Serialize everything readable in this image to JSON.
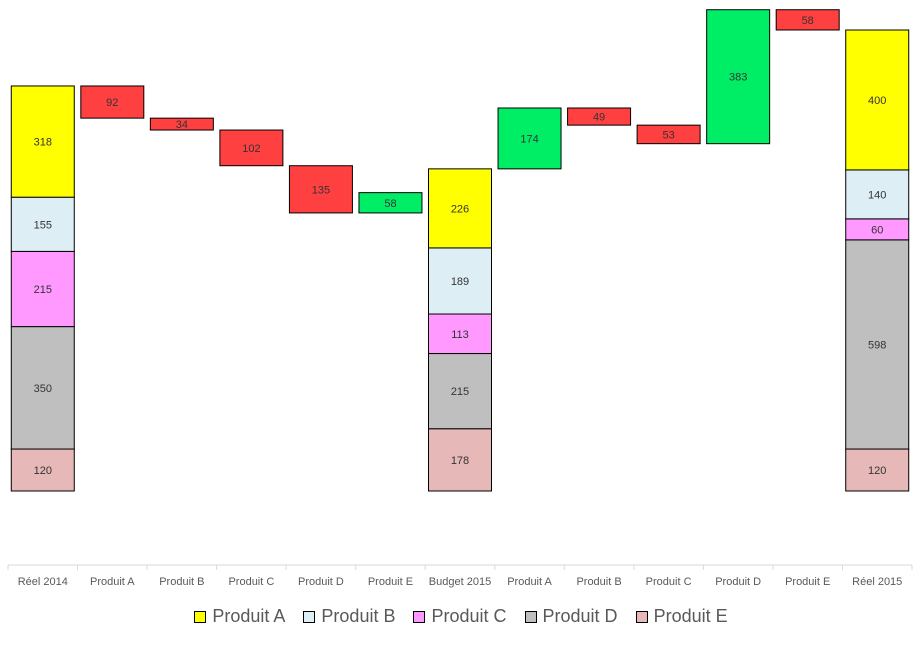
{
  "chart_data": {
    "type": "bar",
    "subtype": "stacked-waterfall",
    "title": "",
    "xlabel": "",
    "ylabel": "",
    "grid": false,
    "legend_position": "bottom",
    "categories": [
      "Réel 2014",
      "Produit A",
      "Produit B",
      "Produit C",
      "Produit D",
      "Produit E",
      "Budget 2015",
      "Produit A",
      "Produit B",
      "Produit C",
      "Produit D",
      "Produit E",
      "Réel 2015"
    ],
    "colors": {
      "produit_a": "#FFFF00",
      "produit_b": "#DDEEF5",
      "produit_c": "#FF99FF",
      "produit_d": "#BFBFBF",
      "produit_e": "#E6B8B7",
      "increase": "#00EE66",
      "decrease": "#FF4040"
    },
    "series": [
      {
        "name": "Produit A",
        "color_key": "produit_a"
      },
      {
        "name": "Produit B",
        "color_key": "produit_b"
      },
      {
        "name": "Produit C",
        "color_key": "produit_c"
      },
      {
        "name": "Produit D",
        "color_key": "produit_d"
      },
      {
        "name": "Produit E",
        "color_key": "produit_e"
      }
    ],
    "totals": [
      {
        "category_index": 0,
        "segments": [
          120,
          350,
          215,
          155,
          318
        ]
      },
      {
        "category_index": 6,
        "segments": [
          178,
          215,
          113,
          189,
          226
        ]
      },
      {
        "category_index": 12,
        "segments": [
          120,
          598,
          60,
          140,
          400
        ]
      }
    ],
    "deltas": [
      {
        "category_index": 1,
        "value": -92
      },
      {
        "category_index": 2,
        "value": -34
      },
      {
        "category_index": 3,
        "value": -102
      },
      {
        "category_index": 4,
        "value": -135
      },
      {
        "category_index": 5,
        "value": 58
      },
      {
        "category_index": 7,
        "value": 174
      },
      {
        "category_index": 8,
        "value": -49
      },
      {
        "category_index": 9,
        "value": -53
      },
      {
        "category_index": 10,
        "value": 383
      },
      {
        "category_index": 11,
        "value": -58
      }
    ],
    "ylim": [
      -220,
      1370
    ]
  }
}
